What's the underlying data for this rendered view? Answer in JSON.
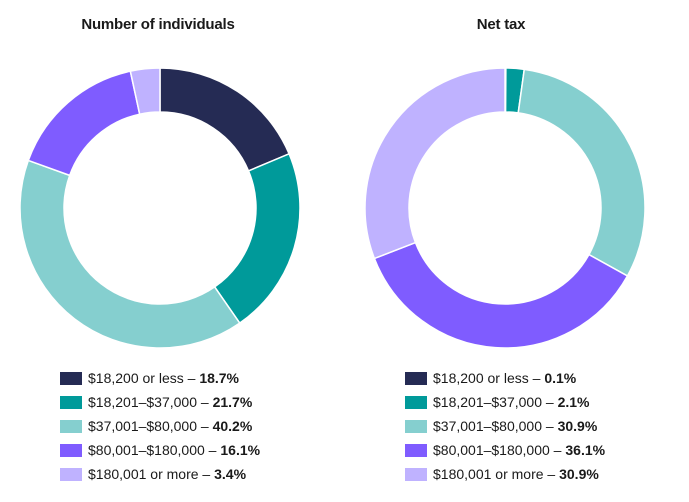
{
  "chart_data": [
    {
      "type": "pie",
      "title": "Number of individuals",
      "categories": [
        "$18,200 or less",
        "$18,201–$37,000",
        "$37,001–$80,000",
        "$80,001–$180,000",
        "$180,001 or more"
      ],
      "values": [
        18.7,
        21.7,
        40.2,
        16.1,
        3.4
      ],
      "display_values": [
        "18.7%",
        "21.7%",
        "40.2%",
        "16.1%",
        "3.4%"
      ],
      "colors": [
        "#252b54",
        "#009a9a",
        "#85cfcf",
        "#7f5cff",
        "#bfb2ff"
      ],
      "legend_position": "bottom"
    },
    {
      "type": "pie",
      "title": "Net tax",
      "categories": [
        "$18,200 or less",
        "$18,201–$37,000",
        "$37,001–$80,000",
        "$80,001–$180,000",
        "$180,001 or more"
      ],
      "values": [
        0.1,
        2.1,
        30.9,
        36.1,
        30.9
      ],
      "display_values": [
        "0.1%",
        "2.1%",
        "30.9%",
        "36.1%",
        "30.9%"
      ],
      "colors": [
        "#252b54",
        "#009a9a",
        "#85cfcf",
        "#7f5cff",
        "#bfb2ff"
      ],
      "legend_position": "bottom"
    }
  ]
}
